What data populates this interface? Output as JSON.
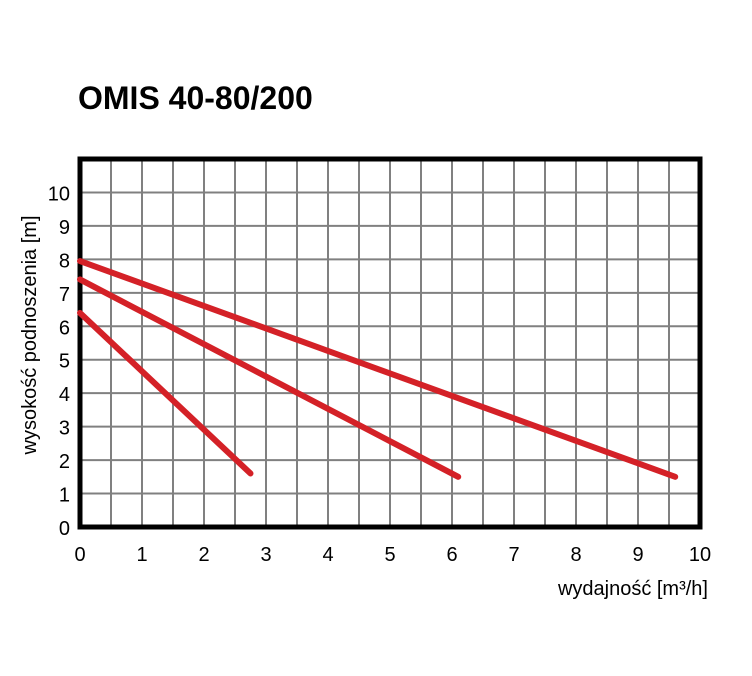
{
  "chart_data": {
    "type": "line",
    "title": "OMIS 40-80/200",
    "xlabel": "wydajność [m³/h]",
    "ylabel": "wysokość podnoszenia [m]",
    "xlim": [
      0,
      10
    ],
    "ylim": [
      0,
      11
    ],
    "x_ticks": [
      "0",
      "1",
      "2",
      "3",
      "4",
      "5",
      "6",
      "7",
      "8",
      "9",
      "10"
    ],
    "y_ticks": [
      "0",
      "1",
      "2",
      "3",
      "4",
      "5",
      "6",
      "7",
      "8",
      "9",
      "10"
    ],
    "grid": true,
    "series": [
      {
        "x": [
          0,
          2.75
        ],
        "values": [
          6.4,
          1.6
        ]
      },
      {
        "x": [
          0,
          6.1
        ],
        "values": [
          7.4,
          1.5
        ]
      },
      {
        "x": [
          0,
          9.6
        ],
        "values": [
          7.95,
          1.5
        ]
      }
    ],
    "colors": {
      "line": "#d42127",
      "grid": "#808080",
      "frame": "#000000"
    }
  }
}
